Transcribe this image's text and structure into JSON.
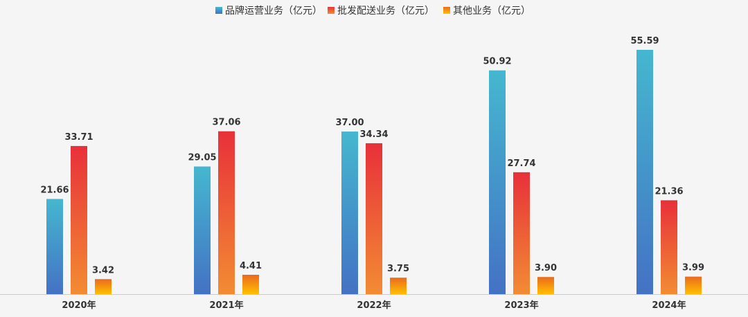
{
  "chart_data": {
    "type": "bar",
    "title": "",
    "xlabel": "",
    "ylabel": "",
    "categories": [
      "2020年",
      "2021年",
      "2022年",
      "2023年",
      "2024年"
    ],
    "series": [
      {
        "name": "品牌运营业务（亿元）",
        "values": [
          21.66,
          29.05,
          37.0,
          50.92,
          55.59
        ],
        "labels": [
          "21.66",
          "29.05",
          "37.00",
          "50.92",
          "55.59"
        ],
        "color_top": "#45b7cf",
        "color_bottom": "#4472c4"
      },
      {
        "name": "批发配送业务（亿元）",
        "values": [
          33.71,
          37.06,
          34.34,
          27.74,
          21.36
        ],
        "labels": [
          "33.71",
          "37.06",
          "34.34",
          "27.74",
          "21.36"
        ],
        "color_top": "#e8303a",
        "color_bottom": "#f28c33"
      },
      {
        "name": "其他业务（亿元）",
        "values": [
          3.42,
          4.41,
          3.75,
          3.9,
          3.99
        ],
        "labels": [
          "3.42",
          "4.41",
          "3.75",
          "3.90",
          "3.99"
        ],
        "color_top": "#ea6a1e",
        "color_bottom": "#ffc000"
      }
    ],
    "ylim": [
      0,
      56
    ],
    "grid": false,
    "legend": "top-center",
    "axis_color": "#c9c9c9",
    "label_color": "#333333"
  }
}
